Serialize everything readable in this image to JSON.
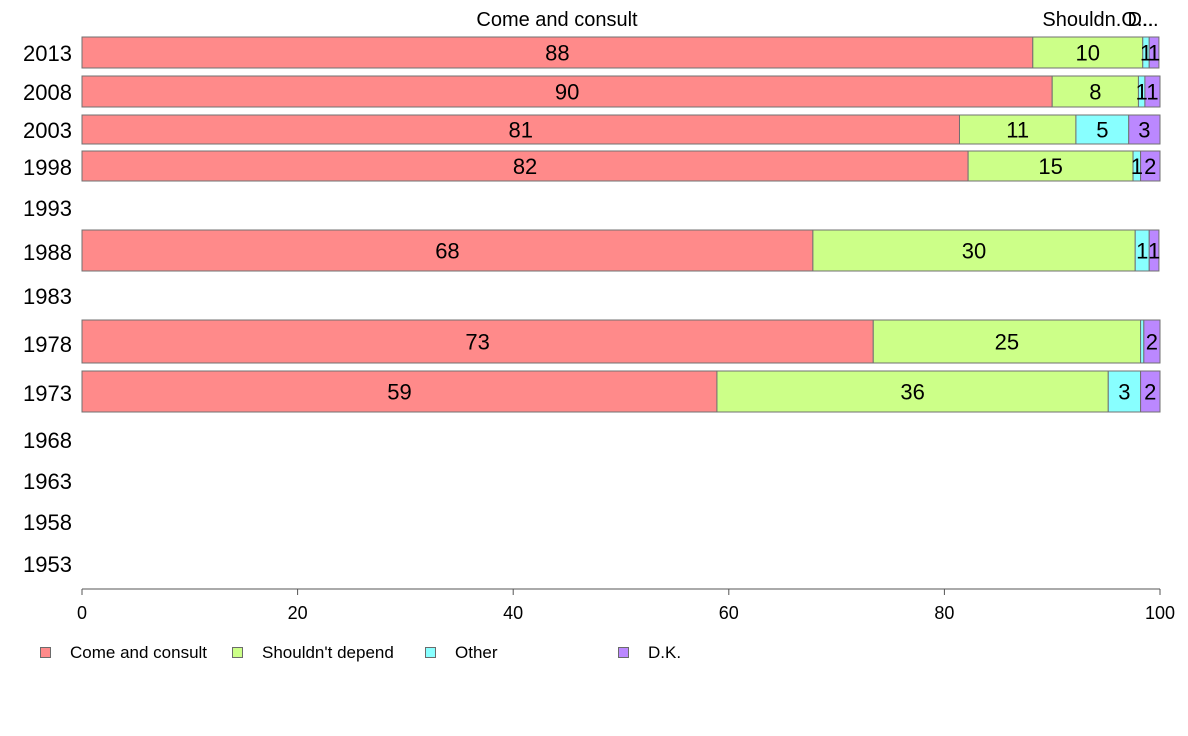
{
  "chart_data": {
    "type": "bar",
    "orientation": "horizontal",
    "stacked": true,
    "categories": [
      "2013",
      "2008",
      "2003",
      "1998",
      "1993",
      "1988",
      "1983",
      "1978",
      "1973",
      "1968",
      "1963",
      "1958",
      "1953"
    ],
    "series": [
      {
        "name": "Come and consult",
        "color": "#FF8A8A",
        "values": [
          88.2,
          90.0,
          81.4,
          82.2,
          null,
          67.8,
          null,
          73.4,
          58.9,
          null,
          null,
          null,
          null
        ],
        "labels": [
          "88",
          "90",
          "81",
          "82",
          "",
          "68",
          "",
          "73",
          "59",
          "",
          "",
          "",
          ""
        ]
      },
      {
        "name": "Shouldn't depend",
        "color": "#CCFF88",
        "values": [
          10.2,
          8.0,
          10.8,
          15.3,
          null,
          29.9,
          null,
          24.8,
          36.3,
          null,
          null,
          null,
          null
        ],
        "labels": [
          "10",
          "8",
          "11",
          "15",
          "",
          "30",
          "",
          "25",
          "36",
          "",
          "",
          "",
          ""
        ]
      },
      {
        "name": "Other",
        "color": "#88FFFF",
        "values": [
          0.6,
          0.6,
          4.9,
          0.7,
          null,
          1.3,
          null,
          0.3,
          3.0,
          null,
          null,
          null,
          null
        ],
        "labels": [
          "1",
          "1",
          "5",
          "1",
          "",
          "1",
          "",
          "",
          "3",
          "",
          "",
          "",
          ""
        ]
      },
      {
        "name": "D.K.",
        "color": "#BB88FF",
        "values": [
          0.9,
          1.4,
          2.9,
          1.8,
          null,
          0.9,
          null,
          1.5,
          1.8,
          null,
          null,
          null,
          null
        ],
        "labels": [
          "1",
          "1",
          "3",
          "2",
          "",
          "1",
          "",
          "2",
          "2",
          "",
          "",
          "",
          ""
        ]
      }
    ],
    "column_labels": [
      "Come and consult",
      "Shouldn.O...",
      "D..."
    ],
    "xlim": [
      0,
      100
    ],
    "xticks": [
      "0",
      "20",
      "40",
      "60",
      "80",
      "100"
    ],
    "grid": false,
    "legend_position": "bottom-left"
  }
}
